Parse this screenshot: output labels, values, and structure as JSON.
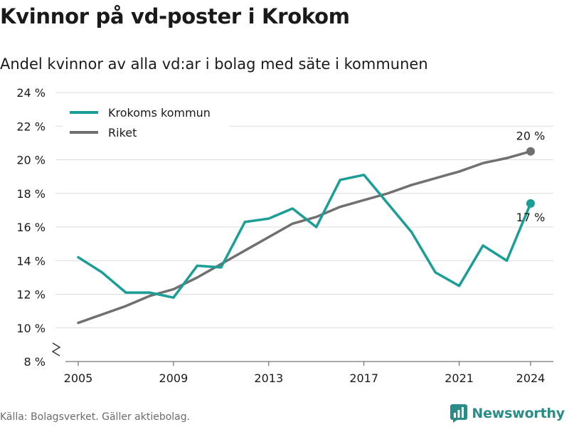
{
  "title": "Kvinnor på vd-poster i Krokom",
  "subtitle": "Andel kvinnor av alla vd:ar i bolag med säte i kommunen",
  "source": "Källa: Bolagsverket. Gäller aktiebolag.",
  "brand": {
    "name": "Newsworthy",
    "icon": "newsworthy-logo-icon"
  },
  "colors": {
    "krokom": "#1a9e96",
    "riket": "#707070",
    "grid": "#dcdcdc",
    "text": "#1a1a1a"
  },
  "chart_data": {
    "type": "line",
    "x": [
      2005,
      2006,
      2007,
      2008,
      2009,
      2010,
      2011,
      2012,
      2013,
      2014,
      2015,
      2016,
      2017,
      2018,
      2019,
      2020,
      2021,
      2022,
      2023,
      2024
    ],
    "series": [
      {
        "name": "Krokoms kommun",
        "color": "#1a9e96",
        "end_label": "17 %",
        "values": [
          14.2,
          13.3,
          12.1,
          12.1,
          11.8,
          13.7,
          13.6,
          16.3,
          16.5,
          17.1,
          16.0,
          18.8,
          19.1,
          17.4,
          15.7,
          13.3,
          12.5,
          14.9,
          14.0,
          17.4
        ]
      },
      {
        "name": "Riket",
        "color": "#707070",
        "end_label": "20 %",
        "values": [
          10.3,
          10.8,
          11.3,
          11.9,
          12.3,
          13.0,
          13.8,
          14.6,
          15.4,
          16.2,
          16.6,
          17.2,
          17.6,
          18.0,
          18.5,
          18.9,
          19.3,
          19.8,
          20.1,
          20.5
        ]
      }
    ],
    "x_ticks": [
      2005,
      2009,
      2013,
      2017,
      2021,
      2024
    ],
    "y_ticks": [
      8,
      10,
      12,
      14,
      16,
      18,
      20,
      22,
      24
    ],
    "y_tick_labels": [
      "8 %",
      "10 %",
      "12 %",
      "14 %",
      "16 %",
      "18 %",
      "20 %",
      "22 %",
      "24 %"
    ],
    "ylim": [
      8,
      24
    ],
    "xlim": [
      2005,
      2024
    ],
    "xlabel": "",
    "ylabel": "",
    "legend_position": "top-left",
    "grid": true,
    "axis_break": true
  }
}
